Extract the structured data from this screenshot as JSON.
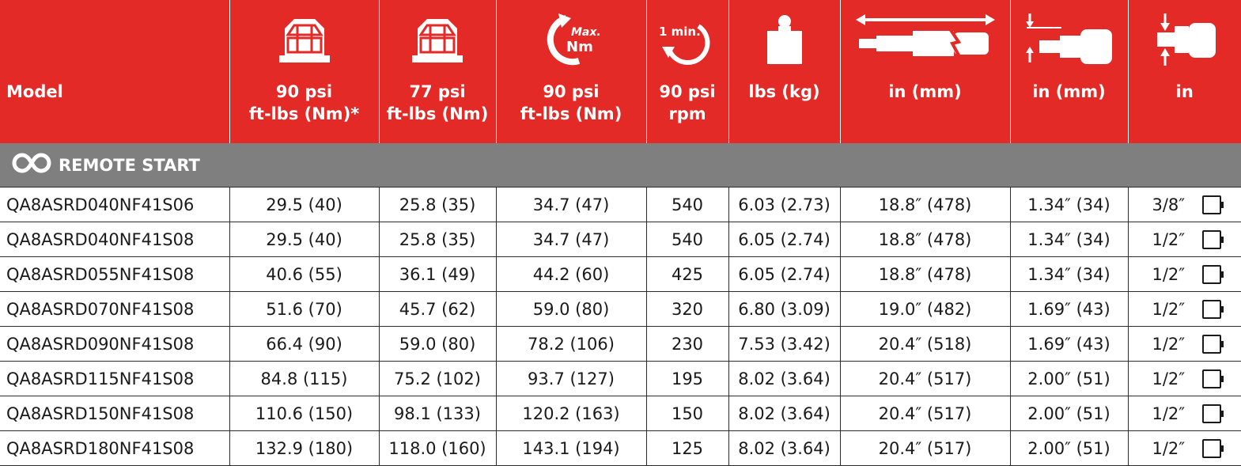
{
  "colors": {
    "header_bg": "#e42a27",
    "section_bg": "#7f7f7f",
    "text": "#1a1a1a"
  },
  "header": {
    "model": "Model",
    "col1": {
      "icon": "nut-icon",
      "line1": "90 psi",
      "line2": "ft-lbs (Nm)*"
    },
    "col2": {
      "icon": "nut-icon",
      "line1": "77 psi",
      "line2": "ft-lbs (Nm)"
    },
    "col3": {
      "icon": "max-torque-icon",
      "icon_text_top": "Max.",
      "icon_text_bottom": "Nm",
      "line1": "90 psi",
      "line2": "ft-lbs (Nm)"
    },
    "col4": {
      "icon": "speed-rpm-icon",
      "icon_text": "1 min.",
      "line1": "90 psi",
      "line2": "rpm"
    },
    "col5": {
      "icon": "weight-icon",
      "line1": "lbs (kg)"
    },
    "col6": {
      "icon": "tool-length-icon",
      "line1": "in (mm)"
    },
    "col7": {
      "icon": "side-to-center-icon",
      "line1": "in (mm)"
    },
    "col8": {
      "icon": "square-drive-icon",
      "line1": "in"
    }
  },
  "section": {
    "icon": "remote-start-icon",
    "label": "REMOTE START"
  },
  "rows": [
    {
      "model": "QA8ASRD040NF41S06",
      "t90": "29.5 (40)",
      "t77": "25.8 (35)",
      "tmax": "34.7 (47)",
      "rpm": "540",
      "weight": "6.03 (2.73)",
      "length": "18.8″ (478)",
      "center": "1.34″ (34)",
      "drive": "3/8″"
    },
    {
      "model": "QA8ASRD040NF41S08",
      "t90": "29.5 (40)",
      "t77": "25.8 (35)",
      "tmax": "34.7 (47)",
      "rpm": "540",
      "weight": "6.05 (2.74)",
      "length": "18.8″ (478)",
      "center": "1.34″ (34)",
      "drive": "1/2″"
    },
    {
      "model": "QA8ASRD055NF41S08",
      "t90": "40.6 (55)",
      "t77": "36.1 (49)",
      "tmax": "44.2 (60)",
      "rpm": "425",
      "weight": "6.05 (2.74)",
      "length": "18.8″ (478)",
      "center": "1.34″ (34)",
      "drive": "1/2″"
    },
    {
      "model": "QA8ASRD070NF41S08",
      "t90": "51.6 (70)",
      "t77": "45.7 (62)",
      "tmax": "59.0 (80)",
      "rpm": "320",
      "weight": "6.80 (3.09)",
      "length": "19.0″ (482)",
      "center": "1.69″ (43)",
      "drive": "1/2″"
    },
    {
      "model": "QA8ASRD090NF41S08",
      "t90": "66.4 (90)",
      "t77": "59.0 (80)",
      "tmax": "78.2 (106)",
      "rpm": "230",
      "weight": "7.53 (3.42)",
      "length": "20.4″ (518)",
      "center": "1.69″ (43)",
      "drive": "1/2″"
    },
    {
      "model": "QA8ASRD115NF41S08",
      "t90": "84.8 (115)",
      "t77": "75.2 (102)",
      "tmax": "93.7 (127)",
      "rpm": "195",
      "weight": "8.02 (3.64)",
      "length": "20.4″ (517)",
      "center": "2.00″ (51)",
      "drive": "1/2″"
    },
    {
      "model": "QA8ASRD150NF41S08",
      "t90": "110.6 (150)",
      "t77": "98.1 (133)",
      "tmax": "120.2 (163)",
      "rpm": "150",
      "weight": "8.02 (3.64)",
      "length": "20.4″ (517)",
      "center": "2.00″ (51)",
      "drive": "1/2″"
    },
    {
      "model": "QA8ASRD180NF41S08",
      "t90": "132.9 (180)",
      "t77": "118.0 (160)",
      "tmax": "143.1 (194)",
      "rpm": "125",
      "weight": "8.02 (3.64)",
      "length": "20.4″ (517)",
      "center": "2.00″ (51)",
      "drive": "1/2″"
    }
  ]
}
